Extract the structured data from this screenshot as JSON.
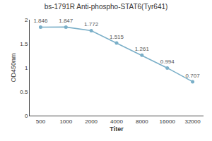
{
  "chart_data": {
    "type": "line",
    "title": "bs-1791R Anti-phospho-STAT6(Tyr641)",
    "xlabel": "Titer",
    "ylabel": "OD450nm",
    "categories": [
      "500",
      "1000",
      "2000",
      "4000",
      "8000",
      "16000",
      "32000"
    ],
    "values": [
      1.846,
      1.847,
      1.772,
      1.515,
      1.261,
      0.994,
      0.707
    ],
    "color": "#7aafc8",
    "marker": "circle",
    "ylim": [
      0,
      2.0
    ],
    "yticks": [
      0,
      0.5,
      1,
      1.5,
      2
    ],
    "grid": false,
    "data_labels": true
  }
}
